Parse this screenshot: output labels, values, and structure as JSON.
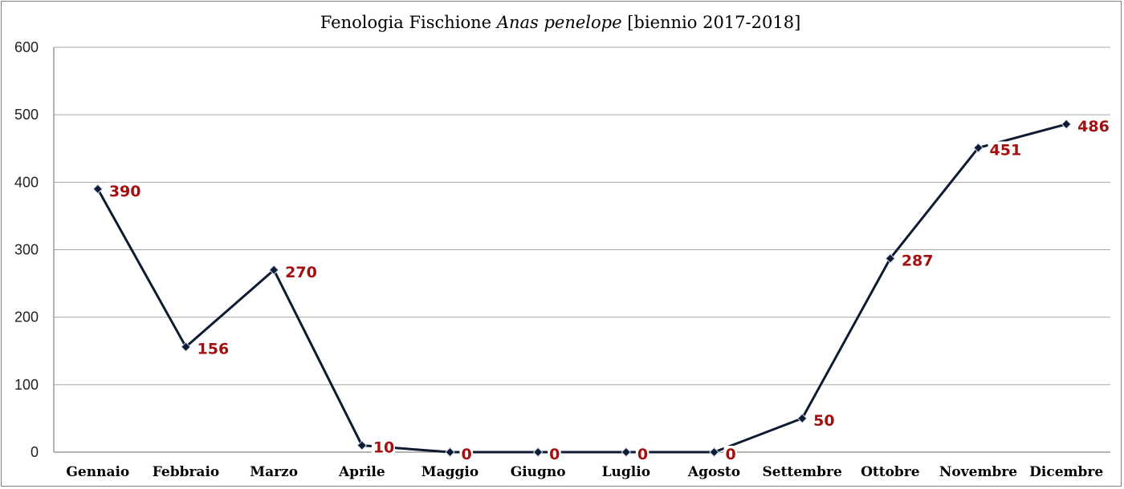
{
  "chart_data": {
    "type": "line",
    "title": "Fenologia Fischione",
    "title_species": "Anas penelope",
    "title_suffix": "[biennio 2017-2018]",
    "categories": [
      "Gennaio",
      "Febbraio",
      "Marzo",
      "Aprile",
      "Maggio",
      "Giugno",
      "Luglio",
      "Agosto",
      "Settembre",
      "Ottobre",
      "Novembre",
      "Dicembre"
    ],
    "series": [
      {
        "values": [
          390,
          156,
          270,
          10,
          0,
          0,
          0,
          0,
          50,
          287,
          451,
          486
        ]
      }
    ],
    "ylim": [
      0,
      600
    ],
    "yticks": [
      0,
      100,
      200,
      300,
      400,
      500,
      600
    ],
    "grid": true,
    "legend": "none",
    "data_labels": true,
    "colors": {
      "line": "#0f1b33",
      "label": "#a50f0f",
      "grid": "#a6a6a6"
    }
  }
}
